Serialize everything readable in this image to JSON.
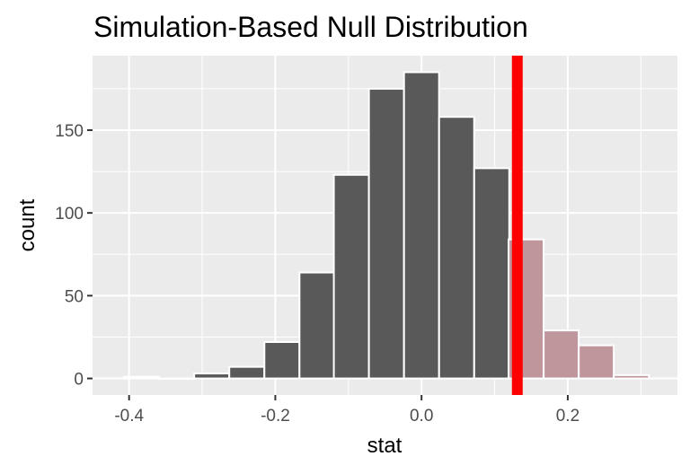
{
  "chart_data": {
    "type": "bar",
    "title": "Simulation-Based Null Distribution",
    "xlabel": "stat",
    "ylabel": "count",
    "xlim": [
      -0.45,
      0.35
    ],
    "ylim": [
      -10,
      195
    ],
    "x_ticks": [
      -0.4,
      -0.2,
      0.0,
      0.2
    ],
    "x_tick_labels": [
      "-0.4",
      "-0.2",
      "0.0",
      "0.2"
    ],
    "y_ticks": [
      0,
      50,
      100,
      150
    ],
    "y_tick_labels": [
      "0",
      "50",
      "100",
      "150"
    ],
    "grid": true,
    "bin_width": 0.0479,
    "bins": [
      {
        "x": -0.383,
        "count": 1,
        "shaded": false
      },
      {
        "x": -0.335,
        "count": 0,
        "shaded": false
      },
      {
        "x": -0.287,
        "count": 3,
        "shaded": false
      },
      {
        "x": -0.239,
        "count": 7,
        "shaded": false
      },
      {
        "x": -0.191,
        "count": 22,
        "shaded": false
      },
      {
        "x": -0.143,
        "count": 64,
        "shaded": false
      },
      {
        "x": -0.096,
        "count": 123,
        "shaded": false
      },
      {
        "x": -0.048,
        "count": 175,
        "shaded": false
      },
      {
        "x": 0.0,
        "count": 185,
        "shaded": false
      },
      {
        "x": 0.048,
        "count": 158,
        "shaded": false
      },
      {
        "x": 0.096,
        "count": 127,
        "shaded": false
      },
      {
        "x": 0.143,
        "count": 84,
        "shaded": true
      },
      {
        "x": 0.191,
        "count": 29,
        "shaded": true
      },
      {
        "x": 0.239,
        "count": 20,
        "shaded": true
      },
      {
        "x": 0.287,
        "count": 2,
        "shaded": true
      }
    ],
    "observed_stat": 0.131,
    "colors": {
      "bar_fill": "#595959",
      "shaded_fill": "#bf969c",
      "bar_outline": "#ffffff",
      "observed_line": "#ff0000",
      "panel_bg": "#ebebeb",
      "grid": "#ffffff"
    }
  }
}
